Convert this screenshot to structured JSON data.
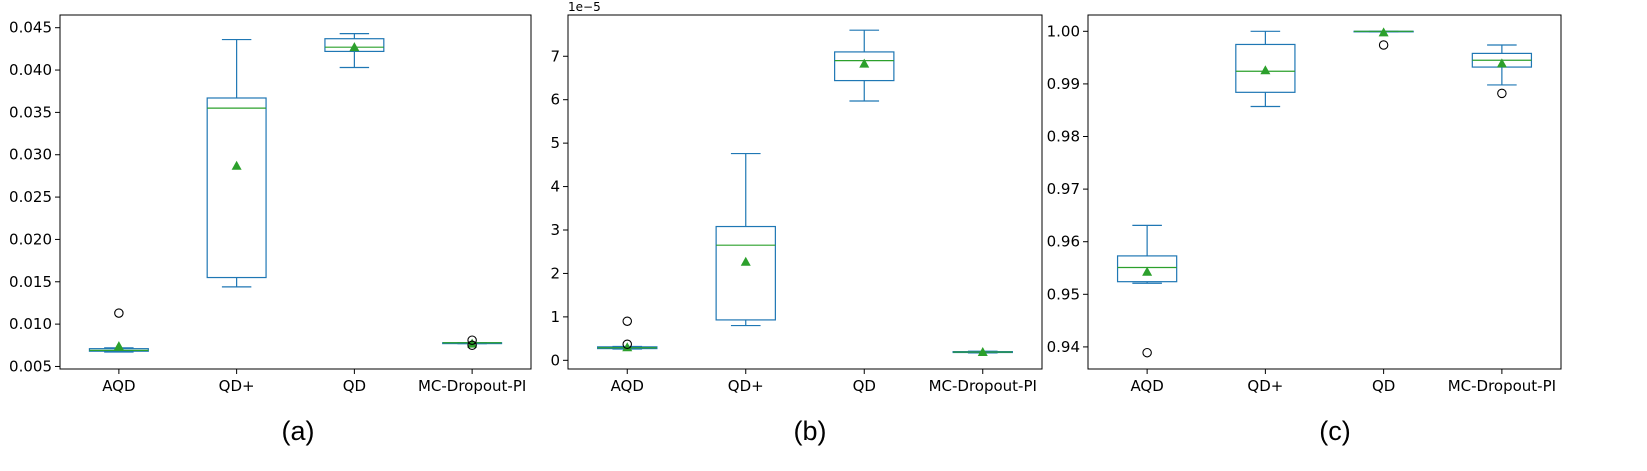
{
  "colors": {
    "box": "#1f77b4",
    "median": "#2ca02c",
    "mean": "#2ca02c",
    "outlier": "#000000"
  },
  "chart_data": [
    {
      "type": "box",
      "caption": "(a)",
      "categories": [
        "AQD",
        "QD+",
        "QD",
        "MC-Dropout-PI"
      ],
      "ylim": [
        0.0047,
        0.0465
      ],
      "yticks": [
        0.005,
        0.01,
        0.015,
        0.02,
        0.025,
        0.03,
        0.035,
        0.04,
        0.045
      ],
      "ytick_labels": [
        "0.005",
        "0.010",
        "0.015",
        "0.020",
        "0.025",
        "0.030",
        "0.035",
        "0.040",
        "0.045"
      ],
      "multiplier": "",
      "boxes": [
        {
          "whislo": 0.0067,
          "q1": 0.0068,
          "med": 0.0069,
          "q3": 0.0071,
          "whishi": 0.0072,
          "mean": 0.0074,
          "fliers": [
            0.0113
          ]
        },
        {
          "whislo": 0.0144,
          "q1": 0.0155,
          "med": 0.0355,
          "q3": 0.0367,
          "whishi": 0.0436,
          "mean": 0.0287,
          "fliers": []
        },
        {
          "whislo": 0.0403,
          "q1": 0.0422,
          "med": 0.0427,
          "q3": 0.0437,
          "whishi": 0.0443,
          "mean": 0.0427,
          "fliers": []
        },
        {
          "whislo": 0.0077,
          "q1": 0.0077,
          "med": 0.0078,
          "q3": 0.0078,
          "whishi": 0.0078,
          "mean": 0.0077,
          "fliers": [
            0.0081,
            0.0075
          ]
        }
      ]
    },
    {
      "type": "box",
      "caption": "(b)",
      "categories": [
        "AQD",
        "QD+",
        "QD",
        "MC-Dropout-PI"
      ],
      "ylim": [
        -0.2,
        7.95
      ],
      "yticks": [
        0,
        1,
        2,
        3,
        4,
        5,
        6,
        7
      ],
      "ytick_labels": [
        "0",
        "1",
        "2",
        "3",
        "4",
        "5",
        "6",
        "7"
      ],
      "multiplier": "1e−5",
      "boxes": [
        {
          "whislo": 0.26,
          "q1": 0.27,
          "med": 0.29,
          "q3": 0.31,
          "whishi": 0.32,
          "mean": 0.3,
          "fliers": [
            0.9,
            0.37
          ]
        },
        {
          "whislo": 0.8,
          "q1": 0.93,
          "med": 2.65,
          "q3": 3.08,
          "whishi": 4.76,
          "mean": 2.27,
          "fliers": []
        },
        {
          "whislo": 5.97,
          "q1": 6.44,
          "med": 6.9,
          "q3": 7.1,
          "whishi": 7.6,
          "mean": 6.83,
          "fliers": []
        },
        {
          "whislo": 0.17,
          "q1": 0.18,
          "med": 0.19,
          "q3": 0.2,
          "whishi": 0.21,
          "mean": 0.19,
          "fliers": []
        }
      ]
    },
    {
      "type": "box",
      "caption": "(c)",
      "categories": [
        "AQD",
        "QD+",
        "QD",
        "MC-Dropout-PI"
      ],
      "ylim": [
        0.9358,
        1.0031
      ],
      "yticks": [
        0.94,
        0.95,
        0.96,
        0.97,
        0.98,
        0.99,
        1.0
      ],
      "ytick_labels": [
        "0.94",
        "0.95",
        "0.96",
        "0.97",
        "0.98",
        "0.99",
        "1.00"
      ],
      "multiplier": "",
      "boxes": [
        {
          "whislo": 0.9521,
          "q1": 0.9524,
          "med": 0.9551,
          "q3": 0.9573,
          "whishi": 0.9631,
          "mean": 0.9543,
          "fliers": [
            0.9389
          ]
        },
        {
          "whislo": 0.9857,
          "q1": 0.9884,
          "med": 0.9924,
          "q3": 0.9975,
          "whishi": 1.0,
          "mean": 0.9926,
          "fliers": []
        },
        {
          "whislo": 0.9999,
          "q1": 0.9999,
          "med": 1.0,
          "q3": 1.0,
          "whishi": 1.0,
          "mean": 0.9998,
          "fliers": [
            0.9974
          ]
        },
        {
          "whislo": 0.9898,
          "q1": 0.9932,
          "med": 0.9945,
          "q3": 0.9958,
          "whishi": 0.9974,
          "mean": 0.9939,
          "fliers": [
            0.9882
          ]
        }
      ]
    }
  ]
}
